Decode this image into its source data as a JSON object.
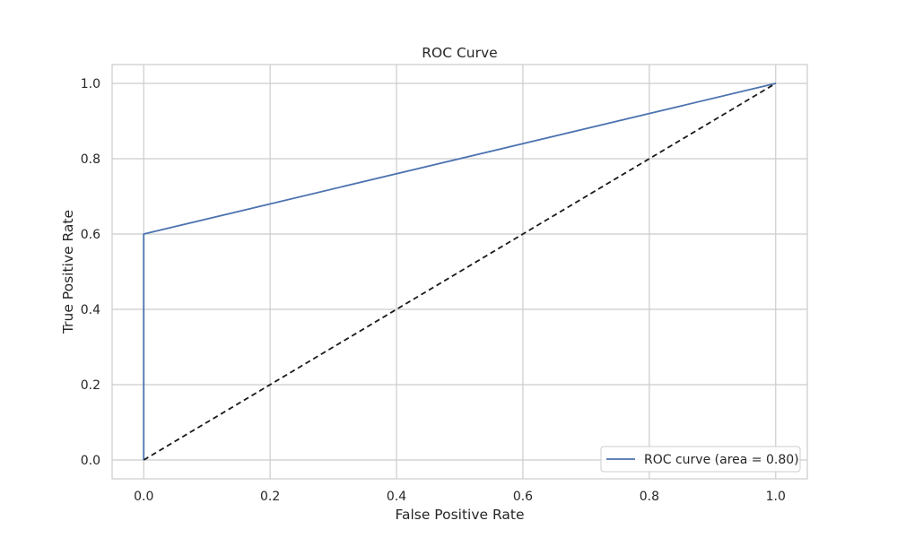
{
  "chart_data": {
    "type": "line",
    "title": "ROC Curve",
    "xlabel": "False Positive Rate",
    "ylabel": "True Positive Rate",
    "xlim": [
      -0.05,
      1.05
    ],
    "ylim": [
      -0.05,
      1.05
    ],
    "x_ticks": [
      "0.0",
      "0.2",
      "0.4",
      "0.6",
      "0.8",
      "1.0"
    ],
    "y_ticks": [
      "0.0",
      "0.2",
      "0.4",
      "0.6",
      "0.8",
      "1.0"
    ],
    "grid": true,
    "legend_position": "lower-right",
    "series": [
      {
        "name": "ROC curve (area = 0.80)",
        "color": "#4c72b0",
        "style": "solid",
        "x": [
          0.0,
          0.0,
          1.0
        ],
        "y": [
          0.0,
          0.6,
          1.0
        ]
      },
      {
        "color": "#1a1a1a",
        "style": "dashed",
        "x": [
          0.0,
          1.0
        ],
        "y": [
          0.0,
          1.0
        ]
      }
    ]
  }
}
